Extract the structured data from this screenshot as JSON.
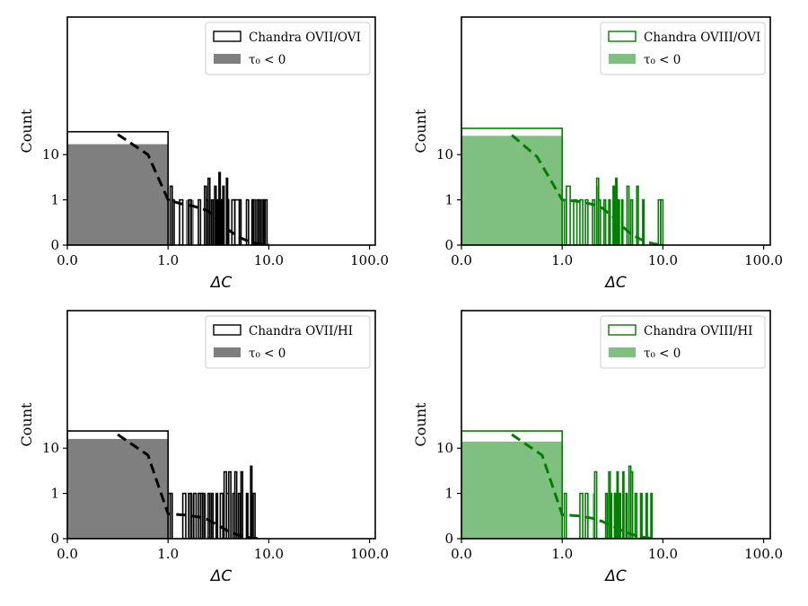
{
  "chart_data": [
    {
      "type": "bar",
      "panel": "top-left",
      "ylabel": "Count",
      "xlabel": "ΔC",
      "x_ticks": [
        "0.0",
        "1.0",
        "10.0",
        "100.0"
      ],
      "y_ticks": [
        "0",
        "1",
        "10"
      ],
      "x_scale": "symlog",
      "y_scale": "symlog",
      "xlim": [
        0,
        100
      ],
      "ylim": [
        0,
        35
      ],
      "legend_position": "top-right",
      "color": "#000000",
      "fill_color": "#7f7f7f",
      "series": [
        {
          "name": "Chandra OVII/OVI",
          "style": "step",
          "bins": [
            [
              0,
              1,
              32
            ],
            [
              1,
              1.05,
              1
            ],
            [
              1.05,
              1.1,
              2
            ],
            [
              1.1,
              1.15,
              1
            ],
            [
              1.3,
              1.4,
              1
            ],
            [
              1.6,
              1.7,
              1
            ],
            [
              2,
              2.1,
              1
            ],
            [
              2.3,
              2.4,
              2
            ],
            [
              2.4,
              2.5,
              1
            ],
            [
              2.5,
              2.6,
              3
            ],
            [
              2.7,
              2.8,
              1
            ],
            [
              2.9,
              3.0,
              2
            ],
            [
              3.1,
              3.2,
              1
            ],
            [
              3.2,
              3.3,
              4
            ],
            [
              3.3,
              3.4,
              1
            ],
            [
              3.4,
              3.5,
              1
            ],
            [
              3.5,
              3.6,
              2
            ],
            [
              3.8,
              3.9,
              3
            ],
            [
              3.9,
              4.0,
              1
            ],
            [
              4.3,
              4.6,
              1
            ],
            [
              4.6,
              5.1,
              1
            ],
            [
              5.1,
              5.3,
              1
            ],
            [
              6,
              6.3,
              1
            ],
            [
              6.8,
              7.0,
              1
            ],
            [
              7.0,
              7.3,
              1
            ],
            [
              7.6,
              7.9,
              1
            ],
            [
              8.0,
              8.3,
              1
            ],
            [
              8.6,
              8.9,
              1
            ],
            [
              9.2,
              9.6,
              1
            ]
          ]
        },
        {
          "name": "τ₀ < 0",
          "style": "filled",
          "bins": [
            [
              0,
              1,
              17
            ],
            [
              1.5,
              1.8,
              1
            ],
            [
              3.0,
              3.1,
              1
            ]
          ]
        },
        {
          "name": "",
          "style": "dashed-curve",
          "points": [
            [
              0.5,
              28
            ],
            [
              0.8,
              10
            ],
            [
              1.0,
              1.0
            ],
            [
              1.3,
              0.92
            ],
            [
              1.8,
              0.86
            ],
            [
              2.5,
              0.76
            ],
            [
              3.2,
              0.55
            ],
            [
              4.0,
              0.33
            ],
            [
              5.0,
              0.18
            ],
            [
              6.5,
              0.07
            ],
            [
              8.0,
              0.02
            ],
            [
              10.0,
              0
            ]
          ]
        }
      ]
    },
    {
      "type": "bar",
      "panel": "top-right",
      "ylabel": "Count",
      "xlabel": "ΔC",
      "x_ticks": [
        "0.0",
        "1.0",
        "10.0",
        "100.0"
      ],
      "y_ticks": [
        "0",
        "1",
        "10"
      ],
      "x_scale": "symlog",
      "y_scale": "symlog",
      "xlim": [
        0,
        100
      ],
      "ylim": [
        0,
        42
      ],
      "legend_position": "top-right",
      "color": "#008000",
      "fill_color": "#7fbf7f",
      "series": [
        {
          "name": "Chandra OVIII/OVI",
          "style": "step",
          "bins": [
            [
              0,
              1,
              38
            ],
            [
              1.05,
              1.1,
              1
            ],
            [
              1.1,
              1.2,
              2
            ],
            [
              1.3,
              1.4,
              1
            ],
            [
              1.5,
              1.6,
              1
            ],
            [
              1.7,
              1.8,
              1
            ],
            [
              2.0,
              2.1,
              1
            ],
            [
              2.2,
              2.3,
              3
            ],
            [
              2.3,
              2.4,
              1
            ],
            [
              2.6,
              2.7,
              1
            ],
            [
              2.9,
              3.0,
              1
            ],
            [
              3.2,
              3.3,
              2
            ],
            [
              3.4,
              3.5,
              3
            ],
            [
              3.6,
              3.7,
              1
            ],
            [
              3.9,
              4.0,
              1
            ],
            [
              4.4,
              4.6,
              2
            ],
            [
              4.8,
              5.0,
              1
            ],
            [
              5.5,
              5.7,
              2
            ],
            [
              6.3,
              6.5,
              1
            ],
            [
              9.0,
              9.5,
              1
            ],
            [
              9.5,
              10.0,
              1
            ]
          ]
        },
        {
          "name": "τ₀ < 0",
          "style": "filled",
          "bins": [
            [
              0,
              1,
              26
            ],
            [
              2.2,
              2.3,
              2
            ],
            [
              6.3,
              6.5,
              1
            ]
          ]
        },
        {
          "name": "",
          "style": "dashed-curve",
          "points": [
            [
              0.5,
              27
            ],
            [
              0.75,
              9
            ],
            [
              1.0,
              1.0
            ],
            [
              1.5,
              0.96
            ],
            [
              2.0,
              0.9
            ],
            [
              2.5,
              0.82
            ],
            [
              3.2,
              0.62
            ],
            [
              4.0,
              0.4
            ],
            [
              5.0,
              0.22
            ],
            [
              6.5,
              0.09
            ],
            [
              8.0,
              0.03
            ],
            [
              10.0,
              0
            ]
          ]
        }
      ]
    },
    {
      "type": "bar",
      "panel": "bottom-left",
      "ylabel": "Count",
      "xlabel": "ΔC",
      "x_ticks": [
        "0.0",
        "1.0",
        "10.0",
        "100.0"
      ],
      "y_ticks": [
        "0",
        "1",
        "10"
      ],
      "x_scale": "symlog",
      "y_scale": "symlog",
      "xlim": [
        0,
        100
      ],
      "ylim": [
        0,
        28
      ],
      "legend_position": "top-right",
      "color": "#000000",
      "fill_color": "#7f7f7f",
      "series": [
        {
          "name": "Chandra OVII/HI",
          "style": "step",
          "bins": [
            [
              0,
              1,
              24
            ],
            [
              1.0,
              1.05,
              1
            ],
            [
              1.05,
              1.1,
              1
            ],
            [
              1.4,
              1.5,
              1
            ],
            [
              1.6,
              1.7,
              1
            ],
            [
              1.8,
              1.9,
              1
            ],
            [
              2.0,
              2.1,
              1
            ],
            [
              2.1,
              2.2,
              1
            ],
            [
              2.2,
              2.3,
              1
            ],
            [
              2.5,
              2.6,
              1
            ],
            [
              2.7,
              2.8,
              1
            ],
            [
              3.0,
              3.1,
              1
            ],
            [
              3.3,
              3.5,
              1
            ],
            [
              3.6,
              3.8,
              3
            ],
            [
              3.8,
              4.0,
              1
            ],
            [
              4.0,
              4.2,
              3
            ],
            [
              4.4,
              4.6,
              1
            ],
            [
              4.6,
              4.8,
              3
            ],
            [
              5.0,
              5.2,
              1
            ],
            [
              5.3,
              5.5,
              3
            ],
            [
              6.0,
              6.2,
              1
            ],
            [
              6.6,
              6.8,
              4
            ],
            [
              7.0,
              7.3,
              1
            ]
          ]
        },
        {
          "name": "τ₀ < 0",
          "style": "filled",
          "bins": [
            [
              0,
              1,
              16
            ],
            [
              1.6,
              1.8,
              1
            ],
            [
              2.2,
              2.4,
              1
            ]
          ]
        },
        {
          "name": "",
          "style": "dashed-curve",
          "points": [
            [
              0.5,
              20
            ],
            [
              0.8,
              7
            ],
            [
              1.0,
              0.55
            ],
            [
              1.5,
              0.52
            ],
            [
              2.0,
              0.48
            ],
            [
              2.5,
              0.42
            ],
            [
              3.0,
              0.32
            ],
            [
              4.0,
              0.16
            ],
            [
              5.0,
              0.08
            ],
            [
              6.5,
              0.02
            ],
            [
              8.0,
              0
            ]
          ]
        }
      ]
    },
    {
      "type": "bar",
      "panel": "bottom-right",
      "ylabel": "Count",
      "xlabel": "ΔC",
      "x_ticks": [
        "0.0",
        "1.0",
        "10.0",
        "100.0"
      ],
      "y_ticks": [
        "0",
        "1",
        "10"
      ],
      "x_scale": "symlog",
      "y_scale": "symlog",
      "xlim": [
        0,
        100
      ],
      "ylim": [
        0,
        28
      ],
      "legend_position": "top-right",
      "color": "#008000",
      "fill_color": "#7fbf7f",
      "series": [
        {
          "name": "Chandra OVIII/HI",
          "style": "step",
          "bins": [
            [
              0,
              1,
              24
            ],
            [
              1.05,
              1.1,
              1
            ],
            [
              1.5,
              1.6,
              1
            ],
            [
              1.7,
              1.8,
              1
            ],
            [
              2.1,
              2.2,
              3
            ],
            [
              2.7,
              2.8,
              1
            ],
            [
              2.9,
              3.0,
              3
            ],
            [
              3.0,
              3.1,
              1
            ],
            [
              3.3,
              3.4,
              1
            ],
            [
              3.5,
              3.6,
              3
            ],
            [
              3.7,
              3.8,
              1
            ],
            [
              4.0,
              4.1,
              3
            ],
            [
              4.3,
              4.4,
              1
            ],
            [
              4.6,
              4.8,
              4
            ],
            [
              4.8,
              5.0,
              3
            ],
            [
              5.3,
              5.5,
              1
            ],
            [
              6.0,
              6.2,
              1
            ],
            [
              6.8,
              7.0,
              1
            ],
            [
              7.6,
              7.8,
              1
            ]
          ]
        },
        {
          "name": "τ₀ < 0",
          "style": "filled",
          "bins": [
            [
              0,
              1,
              14
            ],
            [
              2.0,
              2.1,
              1
            ],
            [
              3.0,
              3.1,
              1
            ]
          ]
        },
        {
          "name": "",
          "style": "dashed-curve",
          "points": [
            [
              0.5,
              20
            ],
            [
              0.8,
              7
            ],
            [
              1.0,
              0.53
            ],
            [
              1.5,
              0.5
            ],
            [
              2.0,
              0.45
            ],
            [
              2.5,
              0.38
            ],
            [
              3.0,
              0.3
            ],
            [
              4.0,
              0.17
            ],
            [
              5.0,
              0.09
            ],
            [
              6.5,
              0.03
            ],
            [
              8.0,
              0
            ]
          ]
        }
      ]
    }
  ]
}
